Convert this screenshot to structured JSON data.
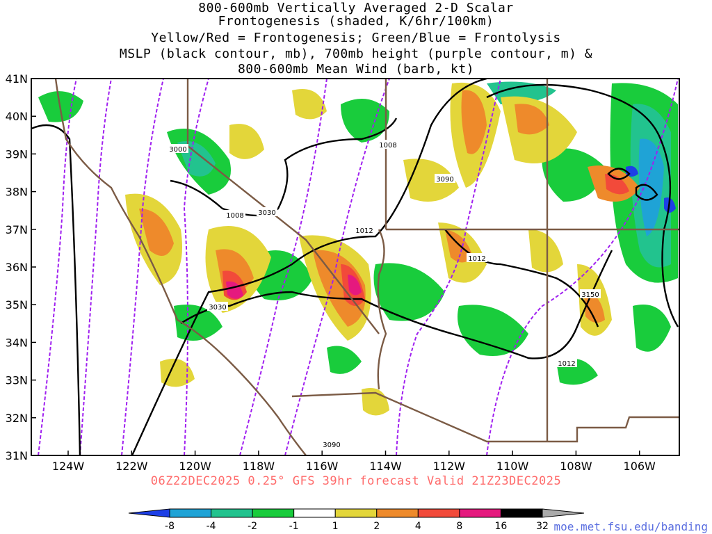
{
  "title_lines": [
    "800-600mb Vertically Averaged 2-D Scalar",
    "Frontogenesis (shaded, K/6hr/100km)",
    "Yellow/Red = Frontogenesis;  Green/Blue = Frontolysis",
    "MSLP (black contour, mb), 700mb height (purple contour, m) &",
    "800-600mb Mean Wind (barb, kt)"
  ],
  "lat_labels": [
    "41N",
    "40N",
    "39N",
    "38N",
    "37N",
    "36N",
    "35N",
    "34N",
    "33N",
    "32N",
    "31N"
  ],
  "lon_labels": [
    "124W",
    "122W",
    "120W",
    "118W",
    "116W",
    "114W",
    "112W",
    "110W",
    "108W",
    "106W"
  ],
  "contour_labels": {
    "mslp": [
      "1008",
      "1008",
      "1012",
      "1012",
      "1012"
    ],
    "height": [
      "3000",
      "3030",
      "3090",
      "3030",
      "3150",
      "3090"
    ]
  },
  "run_label": "06Z22DEC2025 0.25° GFS 39hr forecast Valid 21Z23DEC2025",
  "colorbar": {
    "labels": [
      "-8",
      "-4",
      "-2",
      "-1",
      "1",
      "2",
      "4",
      "8",
      "16",
      "32"
    ],
    "colors": [
      "#1d3fe6",
      "#1fa3d6",
      "#22c38e",
      "#19cc3c",
      "#ffffff",
      "#e3d63a",
      "#ee8a2b",
      "#f24a3a",
      "#e5197e",
      "#000000",
      "#aaaaaa"
    ]
  },
  "credit": "moe.met.fsu.edu/banding"
}
